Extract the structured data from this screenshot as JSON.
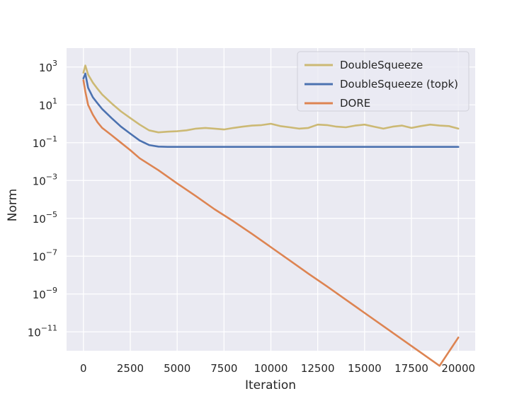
{
  "chart_data": {
    "type": "line",
    "xlabel": "Iteration",
    "ylabel": "Norm",
    "xlim": [
      -900,
      20900
    ],
    "ylim_log10": [
      -12,
      4
    ],
    "y_scale": "log",
    "grid": true,
    "legend_position": "top-right",
    "background": "#EAEAF2",
    "x_ticks": [
      0,
      2500,
      5000,
      7500,
      10000,
      12500,
      15000,
      17500,
      20000
    ],
    "x_tick_labels": [
      "0",
      "2500",
      "5000",
      "7500",
      "10000",
      "12500",
      "15000",
      "17500",
      "20000"
    ],
    "y_tick_exponents": [
      3,
      1,
      -1,
      -3,
      -5,
      -7,
      -9,
      -11
    ],
    "y_tick_labels": [
      {
        "base": "10",
        "exp": "3"
      },
      {
        "base": "10",
        "exp": "1"
      },
      {
        "base": "10",
        "exp": "−1"
      },
      {
        "base": "10",
        "exp": "−3"
      },
      {
        "base": "10",
        "exp": "−5"
      },
      {
        "base": "10",
        "exp": "−7"
      },
      {
        "base": "10",
        "exp": "−9"
      },
      {
        "base": "10",
        "exp": "−11"
      }
    ],
    "series": [
      {
        "name": "DoubleSqueeze",
        "color": "#CCB974",
        "x": [
          0,
          100,
          250,
          500,
          750,
          1000,
          1500,
          2000,
          2500,
          3000,
          3500,
          4000,
          4500,
          5000,
          5500,
          6000,
          6500,
          7000,
          7500,
          8000,
          8500,
          9000,
          9500,
          10000,
          10500,
          11000,
          11500,
          12000,
          12500,
          13000,
          13500,
          14000,
          14500,
          15000,
          15500,
          16000,
          16500,
          17000,
          17500,
          18000,
          18500,
          19000,
          19500,
          20000
        ],
        "y": [
          500,
          1200,
          400,
          150,
          70,
          35,
          12,
          4.5,
          2.0,
          0.9,
          0.45,
          0.35,
          0.38,
          0.4,
          0.45,
          0.55,
          0.6,
          0.55,
          0.5,
          0.6,
          0.7,
          0.8,
          0.85,
          1.0,
          0.75,
          0.65,
          0.55,
          0.6,
          0.9,
          0.85,
          0.7,
          0.65,
          0.8,
          0.9,
          0.7,
          0.55,
          0.7,
          0.8,
          0.6,
          0.75,
          0.9,
          0.8,
          0.75,
          0.55
        ]
      },
      {
        "name": "DoubleSqueeze (topk)",
        "color": "#4C72B0",
        "x": [
          0,
          100,
          250,
          500,
          750,
          1000,
          1500,
          2000,
          2500,
          3000,
          3500,
          4000,
          4500,
          5000,
          6000,
          7000,
          8000,
          9000,
          10000,
          11000,
          12000,
          13000,
          14000,
          15000,
          16000,
          17000,
          18000,
          19000,
          20000
        ],
        "y": [
          250,
          450,
          80,
          25,
          12,
          6,
          2,
          0.7,
          0.3,
          0.13,
          0.075,
          0.062,
          0.06,
          0.06,
          0.06,
          0.06,
          0.06,
          0.06,
          0.06,
          0.06,
          0.06,
          0.06,
          0.06,
          0.06,
          0.06,
          0.06,
          0.06,
          0.06,
          0.06
        ]
      },
      {
        "name": "DORE",
        "color": "#DD8452",
        "x": [
          0,
          100,
          250,
          500,
          750,
          1000,
          1500,
          2000,
          2500,
          3000,
          4000,
          5000,
          6000,
          7000,
          8000,
          9000,
          10000,
          11000,
          12000,
          13000,
          14000,
          15000,
          16000,
          17000,
          18000,
          19000,
          20000
        ],
        "y": [
          200,
          50,
          10,
          3,
          1.2,
          0.6,
          0.25,
          0.1,
          0.04,
          0.015,
          0.0035,
          0.0007,
          0.00015,
          3e-05,
          7e-06,
          1.5e-06,
          3e-07,
          6e-08,
          1.2e-08,
          2.5e-09,
          5e-10,
          1e-10,
          2e-11,
          4e-12,
          8e-13,
          1.6e-13,
          5e-12
        ]
      }
    ]
  }
}
